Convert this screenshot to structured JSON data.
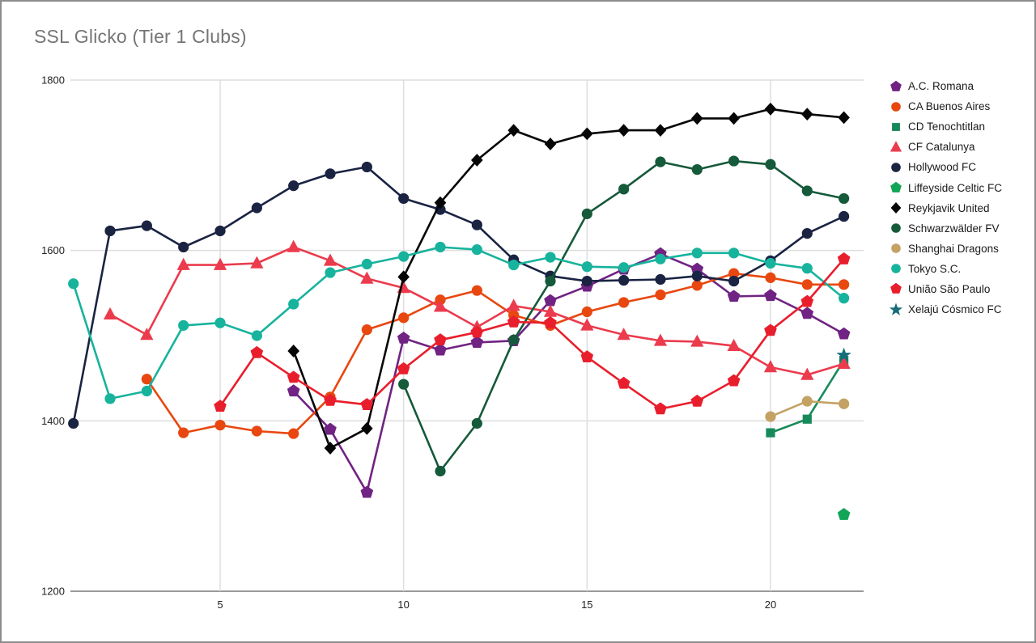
{
  "page": {
    "title": "SSL Glicko (Tier 1 Clubs)"
  },
  "chart_data": {
    "type": "line",
    "title": "SSL Glicko (Tier 1 Clubs)",
    "xlabel": "",
    "ylabel": "",
    "xlim": [
      0.9,
      22.6
    ],
    "ylim": [
      1200,
      1800
    ],
    "x_ticks": [
      5,
      10,
      15,
      20
    ],
    "y_ticks": [
      1200,
      1400,
      1600,
      1800
    ],
    "grid": true,
    "legend_position": "right",
    "grid_color": "#dedede",
    "axis_color": "#9a9a9a",
    "series": [
      {
        "name": "A.C. Romana",
        "color": "#702382",
        "marker": "pentagon",
        "points": [
          [
            7,
            1435
          ],
          [
            8,
            1390
          ],
          [
            9,
            1316
          ],
          [
            10,
            1497
          ],
          [
            11,
            1483
          ],
          [
            12,
            1492
          ],
          [
            13,
            1494
          ],
          [
            14,
            1541
          ],
          [
            15,
            1558
          ],
          [
            16,
            1578
          ],
          [
            17,
            1596
          ],
          [
            18,
            1578
          ],
          [
            19,
            1546
          ],
          [
            20,
            1547
          ],
          [
            21,
            1526
          ],
          [
            22,
            1502
          ]
        ]
      },
      {
        "name": "CA Buenos Aires",
        "color": "#e8470f",
        "marker": "circle",
        "points": [
          [
            3,
            1449
          ],
          [
            4,
            1386
          ],
          [
            5,
            1395
          ],
          [
            6,
            1388
          ],
          [
            7,
            1385
          ],
          [
            8,
            1428
          ],
          [
            9,
            1507
          ],
          [
            10,
            1521
          ],
          [
            11,
            1542
          ],
          [
            12,
            1553
          ],
          [
            13,
            1524
          ],
          [
            14,
            1512
          ],
          [
            15,
            1528
          ],
          [
            16,
            1539
          ],
          [
            17,
            1548
          ],
          [
            18,
            1559
          ],
          [
            19,
            1573
          ],
          [
            20,
            1568
          ],
          [
            21,
            1560
          ],
          [
            22,
            1560
          ]
        ]
      },
      {
        "name": "CD Tenochtitlan",
        "color": "#168a5a",
        "marker": "square",
        "points": [
          [
            20,
            1386
          ],
          [
            21,
            1402
          ],
          [
            22,
            1471
          ]
        ]
      },
      {
        "name": "CF Catalunya",
        "color": "#eb3b4d",
        "marker": "triangle",
        "points": [
          [
            2,
            1525
          ],
          [
            3,
            1501
          ],
          [
            4,
            1583
          ],
          [
            5,
            1583
          ],
          [
            6,
            1585
          ],
          [
            7,
            1604
          ],
          [
            8,
            1588
          ],
          [
            9,
            1567
          ],
          [
            10,
            1556
          ],
          [
            11,
            1534
          ],
          [
            12,
            1510
          ],
          [
            13,
            1535
          ],
          [
            14,
            1528
          ],
          [
            15,
            1512
          ],
          [
            16,
            1501
          ],
          [
            17,
            1494
          ],
          [
            18,
            1493
          ],
          [
            19,
            1488
          ],
          [
            20,
            1463
          ],
          [
            21,
            1454
          ],
          [
            22,
            1467
          ]
        ]
      },
      {
        "name": "Hollywood FC",
        "color": "#1a2342",
        "marker": "circle",
        "points": [
          [
            1,
            1397
          ],
          [
            2,
            1623
          ],
          [
            3,
            1629
          ],
          [
            4,
            1604
          ],
          [
            5,
            1623
          ],
          [
            6,
            1650
          ],
          [
            7,
            1676
          ],
          [
            8,
            1690
          ],
          [
            9,
            1698
          ],
          [
            10,
            1661
          ],
          [
            11,
            1648
          ],
          [
            12,
            1630
          ],
          [
            13,
            1589
          ],
          [
            14,
            1570
          ],
          [
            15,
            1564
          ],
          [
            16,
            1565
          ],
          [
            17,
            1566
          ],
          [
            18,
            1570
          ],
          [
            19,
            1564
          ],
          [
            20,
            1588
          ],
          [
            21,
            1620
          ],
          [
            22,
            1640
          ]
        ]
      },
      {
        "name": "Liffeyside Celtic FC",
        "color": "#12a457",
        "marker": "pentagon",
        "points": [
          [
            22,
            1290
          ]
        ]
      },
      {
        "name": "Reykjavik United",
        "color": "#060606",
        "marker": "diamond",
        "points": [
          [
            7,
            1482
          ],
          [
            8,
            1368
          ],
          [
            9,
            1391
          ],
          [
            10,
            1569
          ],
          [
            11,
            1656
          ],
          [
            12,
            1706
          ],
          [
            13,
            1741
          ],
          [
            14,
            1725
          ],
          [
            15,
            1737
          ],
          [
            16,
            1741
          ],
          [
            17,
            1741
          ],
          [
            18,
            1755
          ],
          [
            19,
            1755
          ],
          [
            20,
            1766
          ],
          [
            21,
            1760
          ],
          [
            22,
            1756
          ]
        ]
      },
      {
        "name": "Schwarzwälder FV",
        "color": "#155a3a",
        "marker": "circle",
        "points": [
          [
            10,
            1443
          ],
          [
            11,
            1341
          ],
          [
            12,
            1397
          ],
          [
            13,
            1495
          ],
          [
            14,
            1564
          ],
          [
            15,
            1643
          ],
          [
            16,
            1672
          ],
          [
            17,
            1704
          ],
          [
            18,
            1695
          ],
          [
            19,
            1705
          ],
          [
            20,
            1701
          ],
          [
            21,
            1670
          ],
          [
            22,
            1661
          ]
        ]
      },
      {
        "name": "Shanghai Dragons",
        "color": "#c3a264",
        "marker": "circle",
        "points": [
          [
            20,
            1405
          ],
          [
            21,
            1423
          ],
          [
            22,
            1420
          ]
        ]
      },
      {
        "name": "Tokyo S.C.",
        "color": "#17b39c",
        "marker": "circle",
        "points": [
          [
            1,
            1561
          ],
          [
            2,
            1426
          ],
          [
            3,
            1435
          ],
          [
            4,
            1512
          ],
          [
            5,
            1515
          ],
          [
            6,
            1500
          ],
          [
            7,
            1537
          ],
          [
            8,
            1574
          ],
          [
            9,
            1584
          ],
          [
            10,
            1593
          ],
          [
            11,
            1604
          ],
          [
            12,
            1601
          ],
          [
            13,
            1583
          ],
          [
            14,
            1592
          ],
          [
            15,
            1581
          ],
          [
            16,
            1580
          ],
          [
            17,
            1590
          ],
          [
            18,
            1597
          ],
          [
            19,
            1597
          ],
          [
            20,
            1585
          ],
          [
            21,
            1579
          ],
          [
            22,
            1544
          ]
        ]
      },
      {
        "name": "União São Paulo",
        "color": "#e91e2c",
        "marker": "pentagon",
        "points": [
          [
            5,
            1417
          ],
          [
            6,
            1480
          ],
          [
            7,
            1451
          ],
          [
            8,
            1424
          ],
          [
            9,
            1419
          ],
          [
            10,
            1461
          ],
          [
            11,
            1495
          ],
          [
            12,
            1504
          ],
          [
            13,
            1516
          ],
          [
            14,
            1515
          ],
          [
            15,
            1475
          ],
          [
            16,
            1444
          ],
          [
            17,
            1414
          ],
          [
            18,
            1423
          ],
          [
            19,
            1447
          ],
          [
            20,
            1506
          ],
          [
            21,
            1540
          ],
          [
            22,
            1590
          ]
        ]
      },
      {
        "name": "Xelajú Cósmico FC",
        "color": "#146d78",
        "marker": "star",
        "points": [
          [
            22,
            1477
          ]
        ]
      }
    ]
  }
}
